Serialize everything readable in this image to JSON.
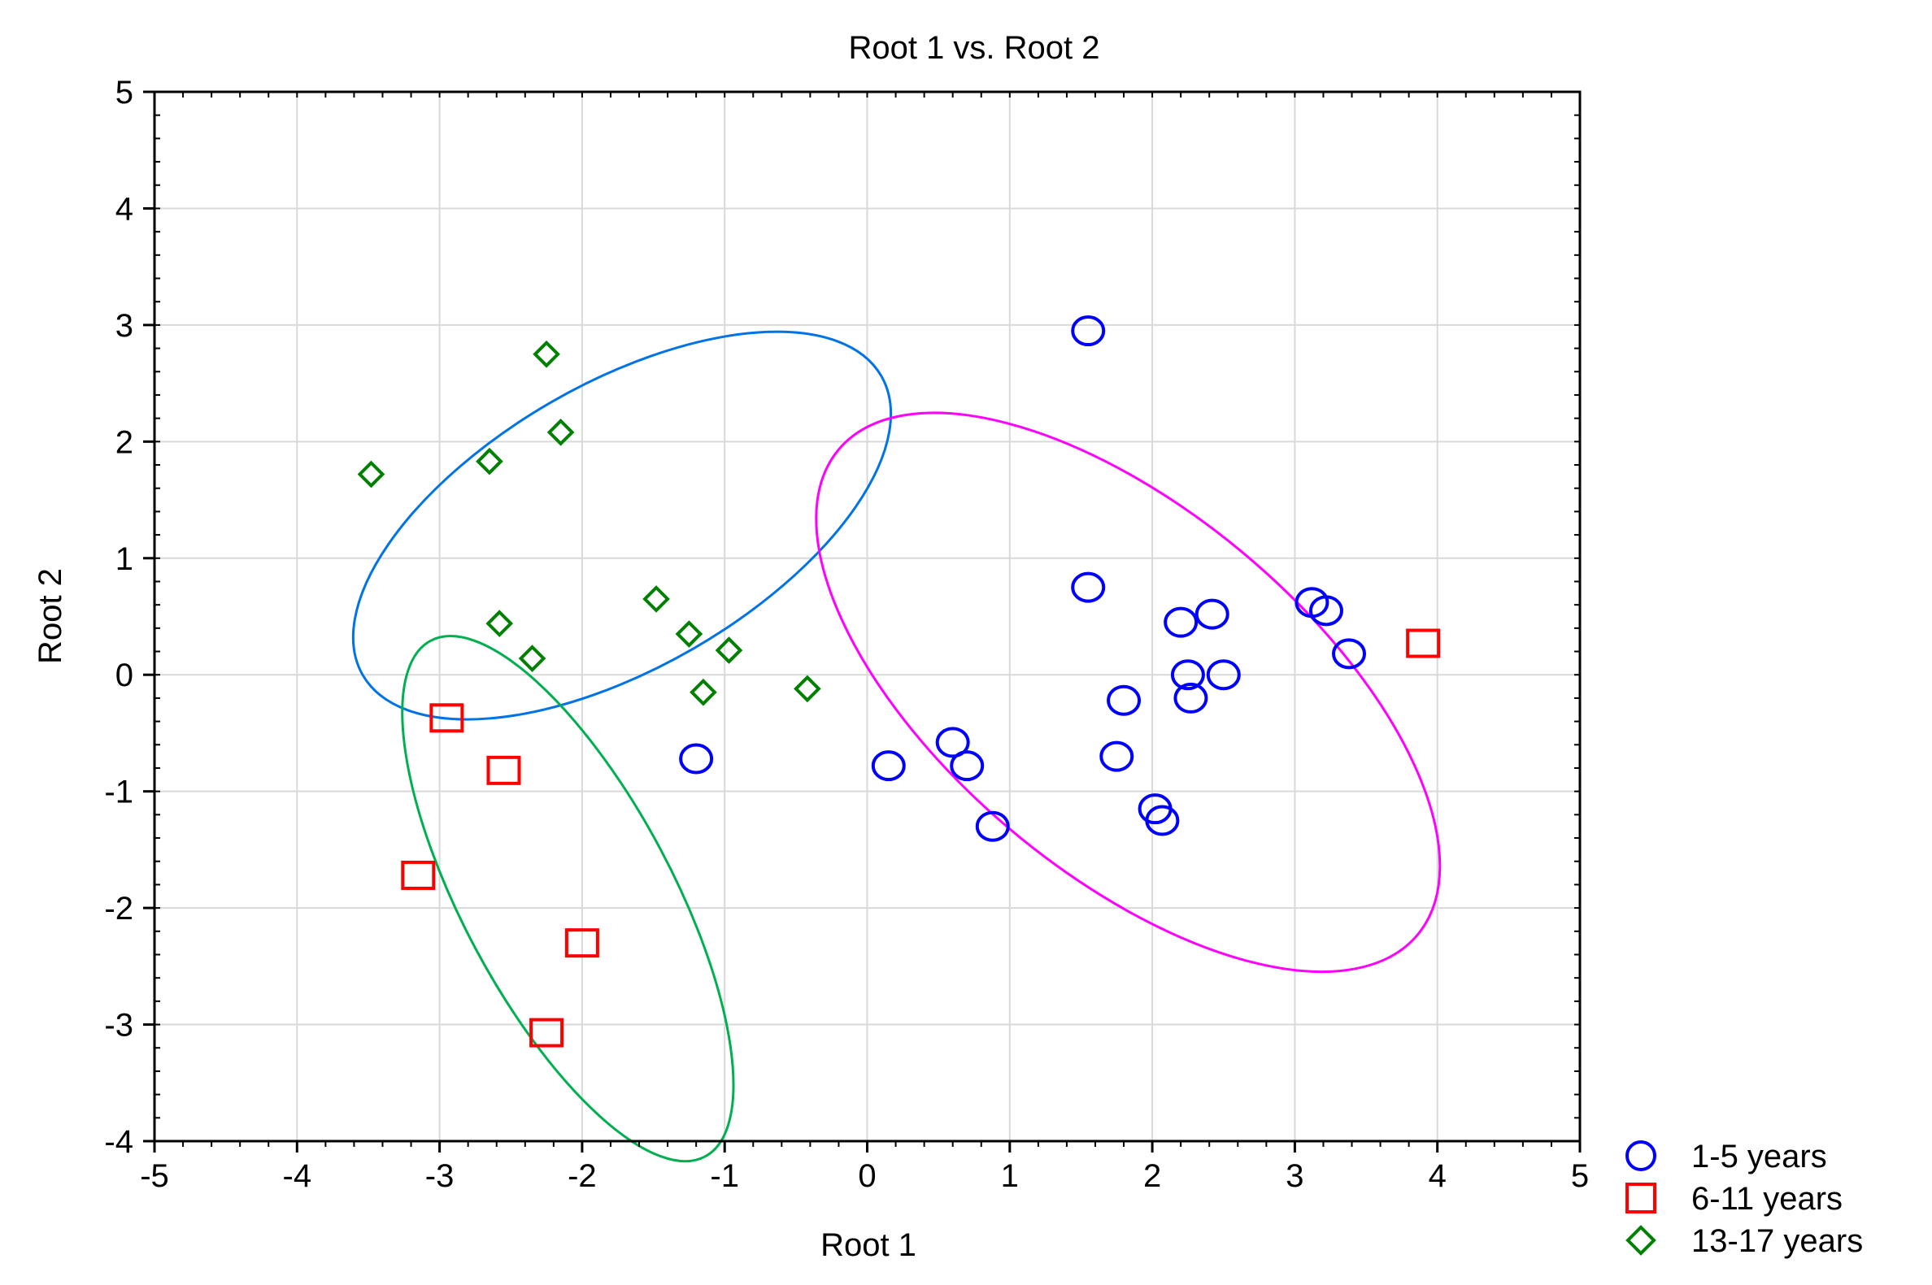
{
  "chart_data": {
    "type": "scatter",
    "title": "Root 1 vs. Root 2",
    "xlabel": "Root 1",
    "ylabel": "Root 2",
    "xlim": [
      -5,
      5
    ],
    "ylim": [
      -4,
      5
    ],
    "x_ticks": [
      -5,
      -4,
      -3,
      -2,
      -1,
      0,
      1,
      2,
      3,
      4,
      5
    ],
    "y_ticks": [
      -4,
      -3,
      -2,
      -1,
      0,
      1,
      2,
      3,
      4,
      5
    ],
    "x_tick_labels": [
      "-5",
      "-4",
      "-3",
      "-2",
      "-1",
      "0",
      "1",
      "2",
      "3",
      "4",
      "5"
    ],
    "y_tick_labels": [
      "-4",
      "-3",
      "-2",
      "-1",
      "0",
      "1",
      "2",
      "3",
      "4",
      "5"
    ],
    "grid": true,
    "legend_position": "bottom-right outside",
    "series": [
      {
        "name": "1-5 years",
        "marker": "circle",
        "color": "#0000ff",
        "points": [
          [
            1.55,
            2.95
          ],
          [
            1.55,
            0.75
          ],
          [
            2.2,
            0.45
          ],
          [
            2.42,
            0.52
          ],
          [
            3.12,
            0.62
          ],
          [
            3.22,
            0.55
          ],
          [
            3.38,
            0.18
          ],
          [
            2.25,
            0.0
          ],
          [
            2.5,
            0.0
          ],
          [
            2.27,
            -0.2
          ],
          [
            1.8,
            -0.22
          ],
          [
            1.75,
            -0.7
          ],
          [
            0.6,
            -0.58
          ],
          [
            0.7,
            -0.78
          ],
          [
            0.15,
            -0.78
          ],
          [
            0.88,
            -1.3
          ],
          [
            2.02,
            -1.15
          ],
          [
            2.07,
            -1.25
          ],
          [
            -1.2,
            -0.72
          ]
        ]
      },
      {
        "name": "6-11 years",
        "marker": "square",
        "color": "#ff0000",
        "points": [
          [
            -2.95,
            -0.37
          ],
          [
            -2.55,
            -0.82
          ],
          [
            -3.15,
            -1.72
          ],
          [
            -2.0,
            -2.3
          ],
          [
            -2.25,
            -3.07
          ],
          [
            3.9,
            0.27
          ]
        ]
      },
      {
        "name": "13-17 years",
        "marker": "diamond",
        "color": "#008000",
        "points": [
          [
            -2.25,
            2.75
          ],
          [
            -2.15,
            2.08
          ],
          [
            -2.65,
            1.83
          ],
          [
            -3.48,
            1.72
          ],
          [
            -2.58,
            0.44
          ],
          [
            -2.35,
            0.14
          ],
          [
            -1.48,
            0.65
          ],
          [
            -1.25,
            0.35
          ],
          [
            -0.97,
            0.21
          ],
          [
            -1.15,
            -0.15
          ],
          [
            -0.42,
            -0.12
          ]
        ]
      }
    ],
    "ellipses": [
      {
        "name": "group-ellipse-13-17",
        "color": "#0073e6",
        "cx": -1.72,
        "cy": 1.28,
        "rx": 2.1,
        "ry": 1.22,
        "angle_deg": -30
      },
      {
        "name": "group-ellipse-6-11",
        "color": "#00b050",
        "cx": -2.1,
        "cy": -1.92,
        "rx": 2.05,
        "ry": 0.9,
        "angle_deg": 62
      },
      {
        "name": "group-ellipse-1-5",
        "color": "#ff00ff",
        "cx": 1.83,
        "cy": -0.15,
        "rx": 2.65,
        "ry": 1.55,
        "angle_deg": 40
      }
    ]
  }
}
